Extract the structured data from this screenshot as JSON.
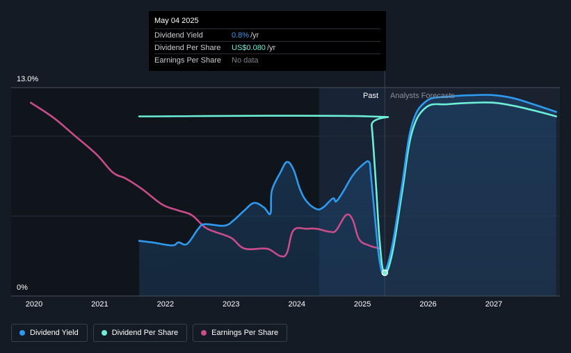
{
  "chart_data": {
    "type": "line",
    "y_axis": {
      "top_label": "13.0%",
      "bottom_label": "0%",
      "ylim": [
        0,
        13
      ]
    },
    "x_axis": {
      "ticks": [
        "2020",
        "2021",
        "2022",
        "2023",
        "2024",
        "2025",
        "2026",
        "2027"
      ],
      "xlim": [
        2019.95,
        2027.95
      ]
    },
    "regions": {
      "past_label": "Past",
      "forecast_label": "Analysts Forecasts",
      "divider_x": 2025.34,
      "highlight_start": 2024.34
    },
    "series": [
      {
        "name": "Dividend Yield",
        "color": "#2f9bf0",
        "points": [
          [
            2021.6,
            2.9
          ],
          [
            2021.8,
            2.8
          ],
          [
            2022.1,
            2.6
          ],
          [
            2022.2,
            2.8
          ],
          [
            2022.33,
            2.7
          ],
          [
            2022.5,
            3.7
          ],
          [
            2022.6,
            4.0
          ],
          [
            2022.9,
            3.9
          ],
          [
            2023.05,
            4.3
          ],
          [
            2023.2,
            4.9
          ],
          [
            2023.35,
            5.4
          ],
          [
            2023.5,
            5.1
          ],
          [
            2023.6,
            4.7
          ],
          [
            2023.62,
            6.2
          ],
          [
            2023.75,
            7.4
          ],
          [
            2023.85,
            8.1
          ],
          [
            2023.95,
            7.6
          ],
          [
            2024.05,
            6.3
          ],
          [
            2024.15,
            5.5
          ],
          [
            2024.3,
            5.0
          ],
          [
            2024.4,
            5.1
          ],
          [
            2024.55,
            5.7
          ],
          [
            2024.6,
            5.5
          ],
          [
            2024.7,
            6.1
          ],
          [
            2024.85,
            7.2
          ],
          [
            2025.0,
            7.9
          ],
          [
            2025.1,
            8.1
          ],
          [
            2025.13,
            7.2
          ],
          [
            2025.2,
            4.0
          ],
          [
            2025.26,
            1.6
          ],
          [
            2025.33,
            0.8
          ],
          [
            2025.45,
            2.5
          ],
          [
            2025.6,
            6.5
          ],
          [
            2025.75,
            10.5
          ],
          [
            2025.97,
            12.1
          ],
          [
            2026.3,
            12.4
          ],
          [
            2026.7,
            12.5
          ],
          [
            2027.0,
            12.5
          ],
          [
            2027.3,
            12.3
          ],
          [
            2027.6,
            11.9
          ],
          [
            2027.95,
            11.4
          ]
        ]
      },
      {
        "name": "Dividend Per Share",
        "color": "#6ef0d8",
        "points": [
          [
            2021.6,
            11.1
          ],
          [
            2025.1,
            11.1
          ],
          [
            2025.14,
            10.5
          ],
          [
            2025.2,
            7.0
          ],
          [
            2025.26,
            3.0
          ],
          [
            2025.33,
            0.8
          ],
          [
            2025.45,
            2.0
          ],
          [
            2025.6,
            6.0
          ],
          [
            2025.75,
            10.0
          ],
          [
            2025.97,
            11.7
          ],
          [
            2026.3,
            11.9
          ],
          [
            2026.7,
            12.0
          ],
          [
            2027.0,
            12.0
          ],
          [
            2027.3,
            11.8
          ],
          [
            2027.6,
            11.5
          ],
          [
            2027.95,
            11.1
          ]
        ]
      },
      {
        "name": "Earnings Per Share",
        "color": "#c84d8a",
        "points": [
          [
            2019.95,
            12.0
          ],
          [
            2020.3,
            11.0
          ],
          [
            2020.6,
            9.9
          ],
          [
            2020.95,
            8.6
          ],
          [
            2021.2,
            7.4
          ],
          [
            2021.4,
            7.0
          ],
          [
            2021.65,
            6.3
          ],
          [
            2021.95,
            5.3
          ],
          [
            2022.2,
            4.9
          ],
          [
            2022.4,
            4.6
          ],
          [
            2022.6,
            3.8
          ],
          [
            2022.75,
            3.5
          ],
          [
            2023.0,
            3.1
          ],
          [
            2023.2,
            2.4
          ],
          [
            2023.5,
            2.4
          ],
          [
            2023.6,
            2.3
          ],
          [
            2023.75,
            1.9
          ],
          [
            2023.85,
            2.1
          ],
          [
            2023.95,
            3.6
          ],
          [
            2024.15,
            3.7
          ],
          [
            2024.3,
            3.7
          ],
          [
            2024.5,
            3.5
          ],
          [
            2024.6,
            3.6
          ],
          [
            2024.75,
            4.6
          ],
          [
            2024.85,
            4.3
          ],
          [
            2024.95,
            3.0
          ],
          [
            2025.1,
            2.6
          ],
          [
            2025.26,
            2.4
          ]
        ]
      }
    ]
  },
  "tooltip": {
    "date": "May 04 2025",
    "rows": [
      {
        "label": "Dividend Yield",
        "value": "0.8%",
        "unit": "/yr"
      },
      {
        "label": "Dividend Per Share",
        "value": "US$0.080",
        "unit": "/yr"
      },
      {
        "label": "Earnings Per Share",
        "value": "No data",
        "unit": ""
      }
    ]
  },
  "legend": [
    {
      "label": "Dividend Yield",
      "color": "#2f9bf0"
    },
    {
      "label": "Dividend Per Share",
      "color": "#6ef0d8"
    },
    {
      "label": "Earnings Per Share",
      "color": "#c84d8a"
    }
  ],
  "marker": {
    "x": 2025.34,
    "y": 0.8
  }
}
